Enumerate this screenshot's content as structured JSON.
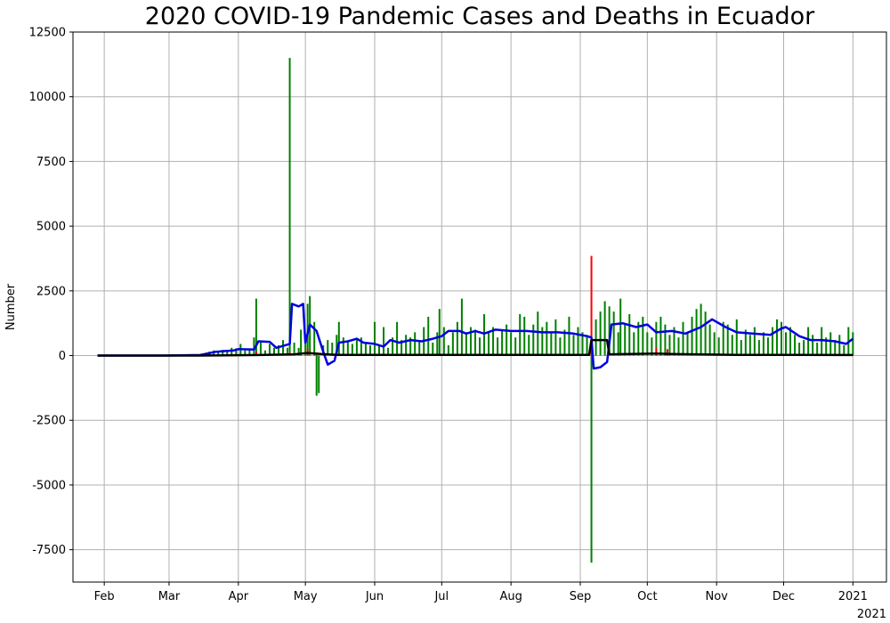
{
  "chart_data": {
    "type": "bar",
    "title": "2020 COVID-19 Pandemic Cases and Deaths in Ecuador",
    "xlabel": "",
    "ylabel": "Number",
    "x_offset_label": "2021",
    "ylim": [
      -8750,
      12500
    ],
    "xlim": [
      "2020-01-18",
      "2021-01-16"
    ],
    "grid": true,
    "y_ticks": [
      -7500,
      -5000,
      -2500,
      0,
      2500,
      5000,
      7500,
      10000,
      12500
    ],
    "x_ticks": [
      {
        "date": "2020-02-01",
        "label": "Feb"
      },
      {
        "date": "2020-03-01",
        "label": "Mar"
      },
      {
        "date": "2020-04-01",
        "label": "Apr"
      },
      {
        "date": "2020-05-01",
        "label": "May"
      },
      {
        "date": "2020-06-01",
        "label": "Jun"
      },
      {
        "date": "2020-07-01",
        "label": "Jul"
      },
      {
        "date": "2020-08-01",
        "label": "Aug"
      },
      {
        "date": "2020-09-01",
        "label": "Sep"
      },
      {
        "date": "2020-10-01",
        "label": "Oct"
      },
      {
        "date": "2020-11-01",
        "label": "Nov"
      },
      {
        "date": "2020-12-01",
        "label": "Dec"
      },
      {
        "date": "2021-01-01",
        "label": "2021"
      }
    ],
    "series": [
      {
        "kind": "bar",
        "color": "#008000",
        "points": [
          [
            "2020-03-15",
            30
          ],
          [
            "2020-03-17",
            60
          ],
          [
            "2020-03-19",
            150
          ],
          [
            "2020-03-21",
            200
          ],
          [
            "2020-03-23",
            160
          ],
          [
            "2020-03-25",
            220
          ],
          [
            "2020-03-27",
            180
          ],
          [
            "2020-03-29",
            300
          ],
          [
            "2020-03-31",
            280
          ],
          [
            "2020-04-02",
            450
          ],
          [
            "2020-04-04",
            200
          ],
          [
            "2020-04-06",
            250
          ],
          [
            "2020-04-08",
            700
          ],
          [
            "2020-04-09",
            2200
          ],
          [
            "2020-04-11",
            500
          ],
          [
            "2020-04-13",
            200
          ],
          [
            "2020-04-15",
            450
          ],
          [
            "2020-04-17",
            300
          ],
          [
            "2020-04-19",
            400
          ],
          [
            "2020-04-21",
            600
          ],
          [
            "2020-04-23",
            300
          ],
          [
            "2020-04-24",
            11500
          ],
          [
            "2020-04-26",
            500
          ],
          [
            "2020-04-28",
            300
          ],
          [
            "2020-04-29",
            1000
          ],
          [
            "2020-05-01",
            600
          ],
          [
            "2020-05-02",
            2000
          ],
          [
            "2020-05-03",
            2300
          ],
          [
            "2020-05-05",
            1300
          ],
          [
            "2020-05-06",
            -1550
          ],
          [
            "2020-05-07",
            -1450
          ],
          [
            "2020-05-09",
            400
          ],
          [
            "2020-05-11",
            600
          ],
          [
            "2020-05-13",
            500
          ],
          [
            "2020-05-15",
            800
          ],
          [
            "2020-05-16",
            1300
          ],
          [
            "2020-05-18",
            700
          ],
          [
            "2020-05-20",
            550
          ],
          [
            "2020-05-22",
            450
          ],
          [
            "2020-05-24",
            600
          ],
          [
            "2020-05-26",
            700
          ],
          [
            "2020-05-28",
            500
          ],
          [
            "2020-05-30",
            400
          ],
          [
            "2020-06-01",
            1300
          ],
          [
            "2020-06-03",
            400
          ],
          [
            "2020-06-05",
            1100
          ],
          [
            "2020-06-07",
            300
          ],
          [
            "2020-06-09",
            700
          ],
          [
            "2020-06-11",
            1300
          ],
          [
            "2020-06-13",
            600
          ],
          [
            "2020-06-15",
            800
          ],
          [
            "2020-06-17",
            700
          ],
          [
            "2020-06-19",
            900
          ],
          [
            "2020-06-21",
            600
          ],
          [
            "2020-06-23",
            1100
          ],
          [
            "2020-06-25",
            1500
          ],
          [
            "2020-06-27",
            500
          ],
          [
            "2020-06-29",
            900
          ],
          [
            "2020-06-30",
            1800
          ],
          [
            "2020-07-02",
            1100
          ],
          [
            "2020-07-04",
            400
          ],
          [
            "2020-07-06",
            900
          ],
          [
            "2020-07-08",
            1300
          ],
          [
            "2020-07-10",
            2200
          ],
          [
            "2020-07-12",
            900
          ],
          [
            "2020-07-14",
            1100
          ],
          [
            "2020-07-16",
            1000
          ],
          [
            "2020-07-18",
            700
          ],
          [
            "2020-07-20",
            1600
          ],
          [
            "2020-07-22",
            900
          ],
          [
            "2020-07-24",
            1100
          ],
          [
            "2020-07-26",
            700
          ],
          [
            "2020-07-28",
            1000
          ],
          [
            "2020-07-30",
            1200
          ],
          [
            "2020-08-01",
            900
          ],
          [
            "2020-08-03",
            700
          ],
          [
            "2020-08-05",
            1600
          ],
          [
            "2020-08-07",
            1500
          ],
          [
            "2020-08-09",
            800
          ],
          [
            "2020-08-11",
            1200
          ],
          [
            "2020-08-13",
            1700
          ],
          [
            "2020-08-15",
            1100
          ],
          [
            "2020-08-17",
            1300
          ],
          [
            "2020-08-19",
            900
          ],
          [
            "2020-08-21",
            1400
          ],
          [
            "2020-08-23",
            700
          ],
          [
            "2020-08-25",
            1000
          ],
          [
            "2020-08-27",
            1500
          ],
          [
            "2020-08-29",
            800
          ],
          [
            "2020-08-31",
            1100
          ],
          [
            "2020-09-02",
            900
          ],
          [
            "2020-09-04",
            800
          ],
          [
            "2020-09-06",
            -8000
          ],
          [
            "2020-09-08",
            1400
          ],
          [
            "2020-09-10",
            1700
          ],
          [
            "2020-09-12",
            2100
          ],
          [
            "2020-09-14",
            1900
          ],
          [
            "2020-09-16",
            1700
          ],
          [
            "2020-09-18",
            900
          ],
          [
            "2020-09-19",
            2200
          ],
          [
            "2020-09-21",
            1200
          ],
          [
            "2020-09-23",
            1600
          ],
          [
            "2020-09-25",
            900
          ],
          [
            "2020-09-27",
            1300
          ],
          [
            "2020-09-29",
            1500
          ],
          [
            "2020-10-01",
            900
          ],
          [
            "2020-10-03",
            700
          ],
          [
            "2020-10-05",
            1300
          ],
          [
            "2020-10-07",
            1500
          ],
          [
            "2020-10-09",
            1200
          ],
          [
            "2020-10-11",
            800
          ],
          [
            "2020-10-13",
            1100
          ],
          [
            "2020-10-15",
            700
          ],
          [
            "2020-10-17",
            1300
          ],
          [
            "2020-10-19",
            900
          ],
          [
            "2020-10-21",
            1500
          ],
          [
            "2020-10-23",
            1800
          ],
          [
            "2020-10-25",
            2000
          ],
          [
            "2020-10-27",
            1700
          ],
          [
            "2020-10-29",
            1200
          ],
          [
            "2020-10-31",
            900
          ],
          [
            "2020-11-02",
            700
          ],
          [
            "2020-11-04",
            1300
          ],
          [
            "2020-11-06",
            1200
          ],
          [
            "2020-11-08",
            800
          ],
          [
            "2020-11-10",
            1400
          ],
          [
            "2020-11-12",
            600
          ],
          [
            "2020-11-14",
            1000
          ],
          [
            "2020-11-16",
            800
          ],
          [
            "2020-11-18",
            1100
          ],
          [
            "2020-11-20",
            600
          ],
          [
            "2020-11-22",
            900
          ],
          [
            "2020-11-24",
            700
          ],
          [
            "2020-11-26",
            1100
          ],
          [
            "2020-11-28",
            1400
          ],
          [
            "2020-11-30",
            1300
          ],
          [
            "2020-12-02",
            900
          ],
          [
            "2020-12-04",
            1100
          ],
          [
            "2020-12-06",
            800
          ],
          [
            "2020-12-08",
            500
          ],
          [
            "2020-12-10",
            600
          ],
          [
            "2020-12-12",
            1100
          ],
          [
            "2020-12-14",
            800
          ],
          [
            "2020-12-16",
            500
          ],
          [
            "2020-12-18",
            1100
          ],
          [
            "2020-12-20",
            700
          ],
          [
            "2020-12-22",
            900
          ],
          [
            "2020-12-24",
            600
          ],
          [
            "2020-12-26",
            800
          ],
          [
            "2020-12-28",
            400
          ],
          [
            "2020-12-30",
            1100
          ],
          [
            "2021-01-01",
            900
          ]
        ]
      },
      {
        "kind": "bar",
        "color": "#ff0000",
        "points": [
          [
            "2020-04-09",
            150
          ],
          [
            "2020-04-24",
            120
          ],
          [
            "2020-05-02",
            250
          ],
          [
            "2020-05-06",
            120
          ],
          [
            "2020-05-13",
            80
          ],
          [
            "2020-06-10",
            60
          ],
          [
            "2020-07-20",
            50
          ],
          [
            "2020-08-14",
            40
          ],
          [
            "2020-09-06",
            3850
          ],
          [
            "2020-10-05",
            300
          ],
          [
            "2020-10-10",
            250
          ],
          [
            "2020-11-05",
            50
          ],
          [
            "2020-12-10",
            40
          ]
        ]
      },
      {
        "kind": "line",
        "color": "#0000e0",
        "points": [
          [
            "2020-01-29",
            0
          ],
          [
            "2020-02-28",
            0
          ],
          [
            "2020-03-15",
            20
          ],
          [
            "2020-03-22",
            150
          ],
          [
            "2020-03-30",
            200
          ],
          [
            "2020-04-01",
            250
          ],
          [
            "2020-04-08",
            230
          ],
          [
            "2020-04-10",
            550
          ],
          [
            "2020-04-15",
            530
          ],
          [
            "2020-04-18",
            300
          ],
          [
            "2020-04-22",
            400
          ],
          [
            "2020-04-24",
            450
          ],
          [
            "2020-04-25",
            2000
          ],
          [
            "2020-04-28",
            1900
          ],
          [
            "2020-04-30",
            2000
          ],
          [
            "2020-05-01",
            500
          ],
          [
            "2020-05-03",
            1200
          ],
          [
            "2020-05-06",
            950
          ],
          [
            "2020-05-09",
            150
          ],
          [
            "2020-05-11",
            -350
          ],
          [
            "2020-05-14",
            -200
          ],
          [
            "2020-05-16",
            500
          ],
          [
            "2020-05-20",
            550
          ],
          [
            "2020-05-24",
            650
          ],
          [
            "2020-05-27",
            500
          ],
          [
            "2020-06-01",
            450
          ],
          [
            "2020-06-05",
            350
          ],
          [
            "2020-06-08",
            600
          ],
          [
            "2020-06-12",
            500
          ],
          [
            "2020-06-17",
            600
          ],
          [
            "2020-06-22",
            550
          ],
          [
            "2020-06-27",
            650
          ],
          [
            "2020-07-01",
            750
          ],
          [
            "2020-07-04",
            950
          ],
          [
            "2020-07-09",
            950
          ],
          [
            "2020-07-12",
            850
          ],
          [
            "2020-07-16",
            950
          ],
          [
            "2020-07-20",
            850
          ],
          [
            "2020-07-25",
            1000
          ],
          [
            "2020-08-01",
            950
          ],
          [
            "2020-08-08",
            950
          ],
          [
            "2020-08-15",
            900
          ],
          [
            "2020-08-22",
            900
          ],
          [
            "2020-08-29",
            850
          ],
          [
            "2020-09-04",
            750
          ],
          [
            "2020-09-06",
            700
          ],
          [
            "2020-09-07",
            -500
          ],
          [
            "2020-09-10",
            -450
          ],
          [
            "2020-09-13",
            -250
          ],
          [
            "2020-09-15",
            1200
          ],
          [
            "2020-09-20",
            1250
          ],
          [
            "2020-09-26",
            1100
          ],
          [
            "2020-10-01",
            1200
          ],
          [
            "2020-10-05",
            900
          ],
          [
            "2020-10-12",
            950
          ],
          [
            "2020-10-18",
            850
          ],
          [
            "2020-10-25",
            1100
          ],
          [
            "2020-10-30",
            1400
          ],
          [
            "2020-11-05",
            1100
          ],
          [
            "2020-11-10",
            900
          ],
          [
            "2020-11-17",
            850
          ],
          [
            "2020-11-25",
            800
          ],
          [
            "2020-11-30",
            1050
          ],
          [
            "2020-12-02",
            1100
          ],
          [
            "2020-12-08",
            750
          ],
          [
            "2020-12-13",
            600
          ],
          [
            "2020-12-18",
            600
          ],
          [
            "2020-12-24",
            550
          ],
          [
            "2020-12-29",
            450
          ],
          [
            "2021-01-01",
            650
          ]
        ]
      },
      {
        "kind": "line",
        "color": "#000000",
        "points": [
          [
            "2020-01-29",
            0
          ],
          [
            "2020-03-15",
            0
          ],
          [
            "2020-04-10",
            20
          ],
          [
            "2020-04-26",
            50
          ],
          [
            "2020-05-02",
            100
          ],
          [
            "2020-05-08",
            60
          ],
          [
            "2020-05-15",
            30
          ],
          [
            "2020-06-15",
            30
          ],
          [
            "2020-09-05",
            30
          ],
          [
            "2020-09-06",
            600
          ],
          [
            "2020-09-13",
            600
          ],
          [
            "2020-09-14",
            50
          ],
          [
            "2020-10-05",
            80
          ],
          [
            "2020-10-12",
            60
          ],
          [
            "2020-11-10",
            30
          ],
          [
            "2021-01-01",
            20
          ]
        ]
      }
    ]
  }
}
